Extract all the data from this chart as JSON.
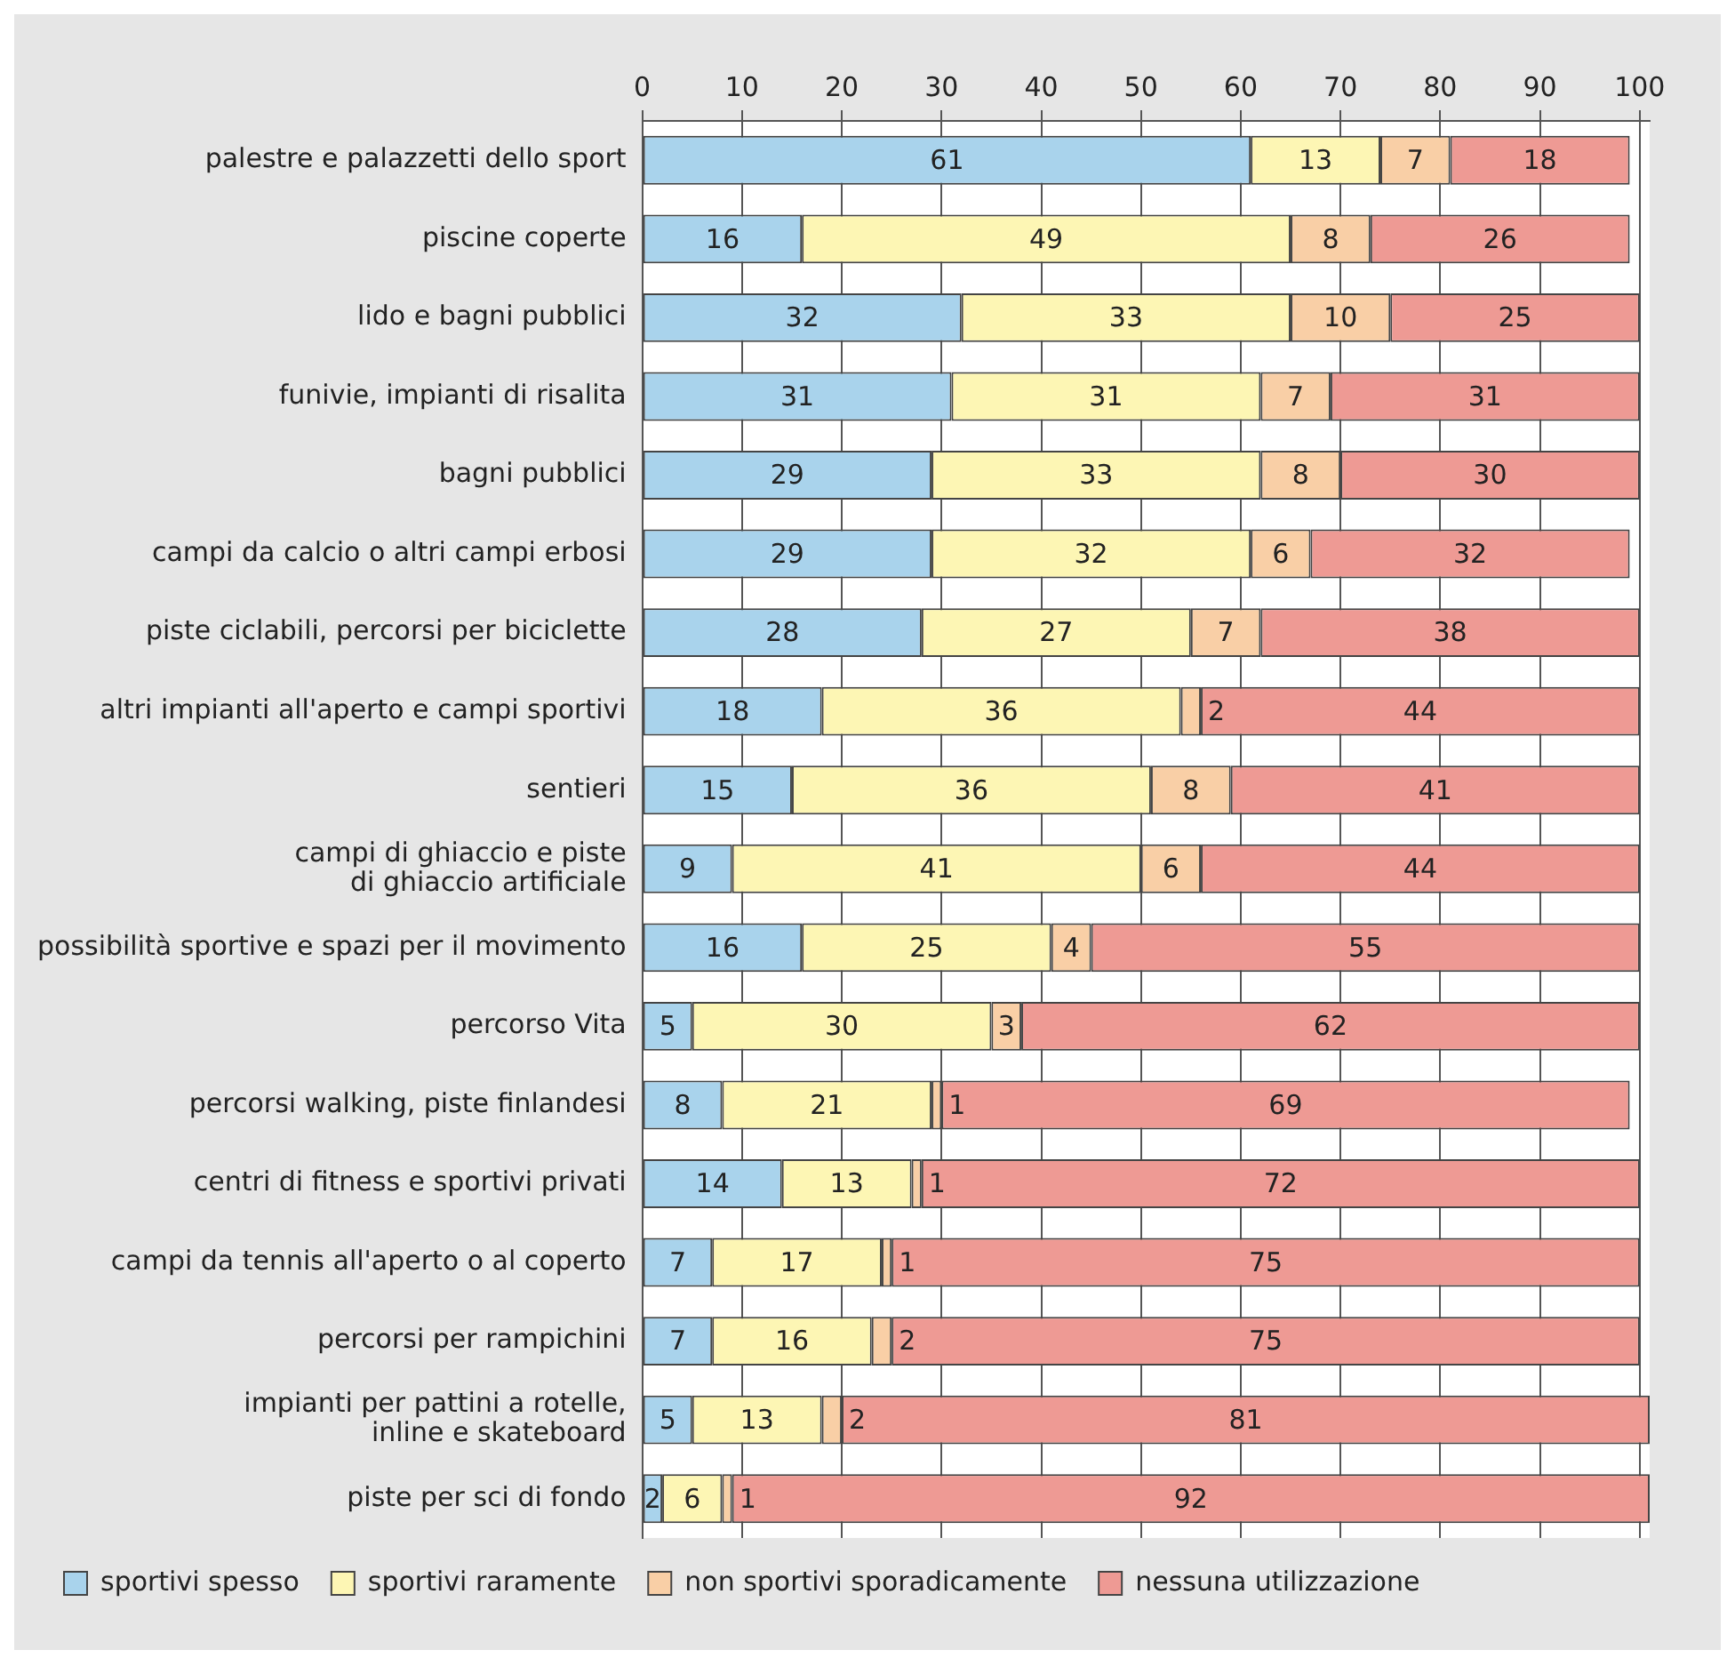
{
  "chart_data": {
    "type": "bar",
    "orientation": "horizontal",
    "stacked": true,
    "data_labels": true,
    "grid": "x",
    "legend": "bottom left",
    "categories": [
      "palestre e palazzetti dello sport",
      "piscine coperte",
      "lido e bagni pubblici",
      "funivie, impianti di risalita",
      "bagni pubblici",
      "campi da calcio o altri campi erbosi",
      "piste ciclabili, percorsi per biciclette",
      "altri impianti all'aperto e campi sportivi",
      "sentieri",
      "campi di ghiaccio e piste\ndi ghiaccio artificiale",
      "possibilità sportive e spazi per il movimento",
      "percorso Vita",
      "percorsi walking, piste finlandesi",
      "centri di fitness e sportivi privati",
      "campi da tennis all'aperto o al coperto",
      "percorsi per rampichini",
      "impianti per pattini a rotelle,\ninline e skateboard",
      "piste per sci di fondo"
    ],
    "xlim": [
      0,
      101
    ],
    "xticks": [
      0,
      10,
      20,
      30,
      40,
      50,
      60,
      70,
      80,
      90,
      100
    ],
    "series": [
      {
        "name": "sportivi spesso",
        "color": "#a9d3ec",
        "values": [
          61,
          16,
          32,
          31,
          29,
          29,
          28,
          18,
          15,
          9,
          16,
          5,
          8,
          14,
          7,
          7,
          5,
          2
        ]
      },
      {
        "name": "sportivi raramente",
        "color": "#fdf6b4",
        "values": [
          13,
          49,
          33,
          31,
          33,
          32,
          27,
          36,
          36,
          41,
          25,
          30,
          21,
          13,
          17,
          16,
          13,
          6
        ]
      },
      {
        "name": "non sportivi sporadicamente",
        "color": "#f9cfa6",
        "values": [
          7,
          8,
          10,
          7,
          8,
          6,
          7,
          2,
          8,
          6,
          4,
          3,
          1,
          1,
          1,
          2,
          2,
          1
        ]
      },
      {
        "name": "nessuna utilizzazione",
        "color": "#ee9a94",
        "values": [
          18,
          26,
          25,
          31,
          30,
          32,
          38,
          44,
          41,
          44,
          55,
          62,
          69,
          72,
          75,
          75,
          81,
          92
        ]
      }
    ]
  }
}
